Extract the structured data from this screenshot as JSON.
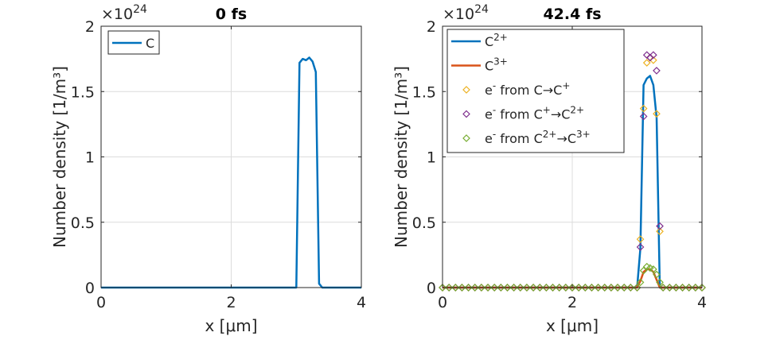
{
  "chart_data": [
    {
      "type": "line",
      "title": "0 fs",
      "xlabel": "x [μm]",
      "ylabel": "Number density [1/m³]",
      "y_exponent_label": "×10",
      "y_exponent_power": "24",
      "xlim": [
        0,
        4
      ],
      "ylim": [
        0,
        2
      ],
      "xticks": [
        0,
        2,
        4
      ],
      "yticks": [
        0,
        0.5,
        1,
        1.5,
        2
      ],
      "ytick_labels": [
        "0",
        "0.5",
        "1",
        "1.5",
        "2"
      ],
      "grid": true,
      "legend_position": "top-left",
      "series": [
        {
          "name": "C",
          "color": "#0072BD",
          "style": "line",
          "x": [
            0,
            3.0,
            3.05,
            3.1,
            3.15,
            3.2,
            3.25,
            3.3,
            3.35,
            3.4,
            4.0
          ],
          "y": [
            0,
            0,
            1.72,
            1.75,
            1.74,
            1.76,
            1.73,
            1.65,
            0.03,
            0,
            0
          ]
        }
      ]
    },
    {
      "type": "line",
      "title": "42.4 fs",
      "xlabel": "x [μm]",
      "ylabel": "Number density [1/m³]",
      "y_exponent_label": "×10",
      "y_exponent_power": "24",
      "xlim": [
        0,
        4
      ],
      "ylim": [
        0,
        2
      ],
      "xticks": [
        0,
        2,
        4
      ],
      "yticks": [
        0,
        0.5,
        1,
        1.5,
        2
      ],
      "ytick_labels": [
        "0",
        "0.5",
        "1",
        "1.5",
        "2"
      ],
      "grid": true,
      "legend_position": "top-left",
      "series": [
        {
          "name": "C2+",
          "legend_base": "C",
          "legend_sup": "2+",
          "color": "#0072BD",
          "style": "line",
          "x": [
            0,
            3.0,
            3.05,
            3.1,
            3.15,
            3.2,
            3.25,
            3.3,
            3.35,
            4.0
          ],
          "y": [
            0,
            0,
            0.3,
            1.55,
            1.6,
            1.62,
            1.55,
            1.3,
            0,
            0
          ]
        },
        {
          "name": "C3+",
          "legend_base": "C",
          "legend_sup": "3+",
          "color": "#D95319",
          "style": "line",
          "x": [
            0,
            3.0,
            3.05,
            3.1,
            3.15,
            3.2,
            3.25,
            3.3,
            3.35,
            4.0
          ],
          "y": [
            0,
            0,
            0.05,
            0.12,
            0.14,
            0.14,
            0.12,
            0.06,
            0,
            0
          ]
        },
        {
          "name": "e- from C→C+",
          "legend_parts": [
            "e",
            "-",
            " from C→C",
            "+",
            "",
            ""
          ],
          "color": "#EDB120",
          "style": "markers",
          "x": [
            0,
            0.1,
            0.2,
            0.3,
            0.4,
            0.5,
            0.6,
            0.7,
            0.8,
            0.9,
            1.0,
            1.1,
            1.2,
            1.3,
            1.4,
            1.5,
            1.6,
            1.7,
            1.8,
            1.9,
            2.0,
            2.1,
            2.2,
            2.3,
            2.4,
            2.5,
            2.6,
            2.7,
            2.8,
            2.9,
            3.0,
            3.05,
            3.1,
            3.15,
            3.2,
            3.25,
            3.3,
            3.35,
            3.4,
            3.5,
            3.6,
            3.7,
            3.8,
            3.9,
            4.0
          ],
          "y": [
            0,
            0,
            0,
            0,
            0,
            0,
            0,
            0,
            0,
            0,
            0,
            0,
            0,
            0,
            0,
            0,
            0,
            0,
            0,
            0,
            0,
            0,
            0,
            0,
            0,
            0,
            0,
            0,
            0,
            0,
            0,
            0.37,
            1.37,
            1.72,
            1.76,
            1.74,
            1.33,
            0.43,
            0,
            0,
            0,
            0,
            0,
            0,
            0
          ]
        },
        {
          "name": "e- from C+→C2+",
          "legend_parts": [
            "e",
            "-",
            " from C",
            "+",
            "→C",
            "2+"
          ],
          "color": "#7E2F8E",
          "style": "markers",
          "x": [
            0,
            0.1,
            0.2,
            0.3,
            0.4,
            0.5,
            0.6,
            0.7,
            0.8,
            0.9,
            1.0,
            1.1,
            1.2,
            1.3,
            1.4,
            1.5,
            1.6,
            1.7,
            1.8,
            1.9,
            2.0,
            2.1,
            2.2,
            2.3,
            2.4,
            2.5,
            2.6,
            2.7,
            2.8,
            2.9,
            3.0,
            3.05,
            3.1,
            3.15,
            3.2,
            3.25,
            3.3,
            3.35,
            3.4,
            3.5,
            3.6,
            3.7,
            3.8,
            3.9,
            4.0
          ],
          "y": [
            0,
            0,
            0,
            0,
            0,
            0,
            0,
            0,
            0,
            0,
            0,
            0,
            0,
            0,
            0,
            0,
            0,
            0,
            0,
            0,
            0,
            0,
            0,
            0,
            0,
            0,
            0,
            0,
            0,
            0,
            0,
            0.31,
            1.31,
            1.78,
            1.76,
            1.78,
            1.66,
            0.47,
            0,
            0,
            0,
            0,
            0,
            0,
            0
          ]
        },
        {
          "name": "e- from C2+→C3+",
          "legend_parts": [
            "e",
            "-",
            " from C",
            "2+",
            "→C",
            "3+"
          ],
          "color": "#77AC30",
          "style": "markers",
          "x": [
            0,
            0.1,
            0.2,
            0.3,
            0.4,
            0.5,
            0.6,
            0.7,
            0.8,
            0.9,
            1.0,
            1.1,
            1.2,
            1.3,
            1.4,
            1.5,
            1.6,
            1.7,
            1.8,
            1.9,
            2.0,
            2.1,
            2.2,
            2.3,
            2.4,
            2.5,
            2.6,
            2.7,
            2.8,
            2.9,
            3.0,
            3.05,
            3.1,
            3.15,
            3.2,
            3.25,
            3.3,
            3.35,
            3.4,
            3.5,
            3.6,
            3.7,
            3.8,
            3.9,
            4.0
          ],
          "y": [
            0,
            0,
            0,
            0,
            0,
            0,
            0,
            0,
            0,
            0,
            0,
            0,
            0,
            0,
            0,
            0,
            0,
            0,
            0,
            0,
            0,
            0,
            0,
            0,
            0,
            0,
            0,
            0,
            0,
            0,
            0,
            0.04,
            0.13,
            0.16,
            0.15,
            0.14,
            0.1,
            0.04,
            0,
            0,
            0,
            0,
            0,
            0,
            0
          ]
        }
      ]
    }
  ]
}
